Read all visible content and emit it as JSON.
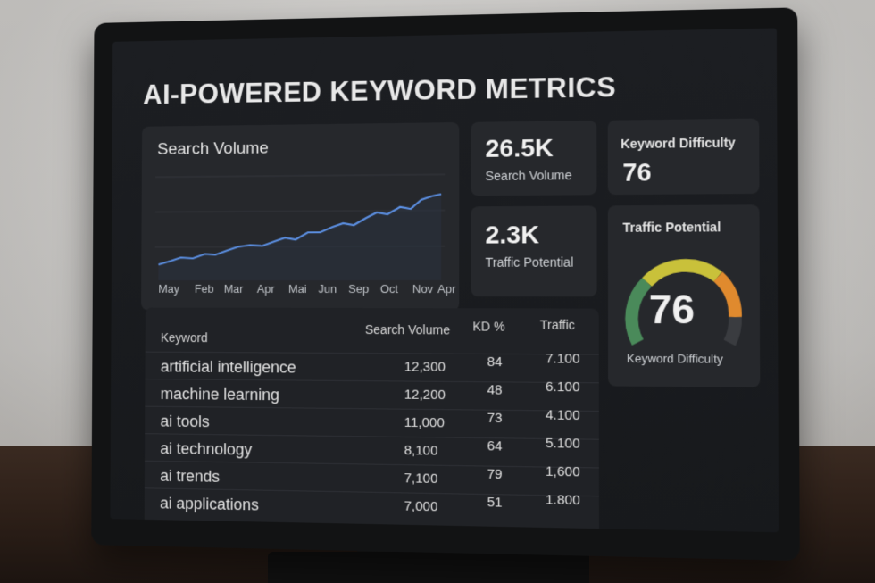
{
  "title": "AI-POWERED KEYWORD METRICS",
  "search_volume_panel": {
    "title": "Search Volume",
    "months": [
      "May",
      "Feb",
      "Mar",
      "Apr",
      "Mai",
      "Jun",
      "Sep",
      "Oct",
      "Nov",
      "Apr"
    ]
  },
  "metric_volume": {
    "value": "26.5K",
    "label": "Search Volume"
  },
  "metric_kd": {
    "label": "Keyword Difficulty",
    "value": "76"
  },
  "metric_traffic": {
    "value": "2.3K",
    "label": "Traffic Potential"
  },
  "gauge": {
    "title": "Traffic Potential",
    "value": "76",
    "label": "Keyword Difficulty"
  },
  "table": {
    "headers": [
      "Keyword",
      "Search Volume",
      "KD %",
      "Traffic"
    ],
    "rows": [
      {
        "keyword": "artificial  intelligence",
        "volume": "12,300",
        "kd": "84",
        "traffic": "7.100"
      },
      {
        "keyword": "machine learning",
        "volume": "12,200",
        "kd": "48",
        "traffic": "6.100"
      },
      {
        "keyword": "ai tools",
        "volume": "11,000",
        "kd": "73",
        "traffic": "4.100"
      },
      {
        "keyword": "ai technology",
        "volume": "8,100",
        "kd": "64",
        "traffic": "5.100"
      },
      {
        "keyword": "ai trends",
        "volume": "7,100",
        "kd": "79",
        "traffic": "1,600"
      },
      {
        "keyword": "ai applications",
        "volume": "7,000",
        "kd": "51",
        "traffic": "1.800"
      }
    ]
  },
  "colors": {
    "line": "#5b8ee0",
    "gauge_green": "#4a8a5a",
    "gauge_yellow": "#c9c13a",
    "gauge_orange": "#e08a2e"
  }
}
